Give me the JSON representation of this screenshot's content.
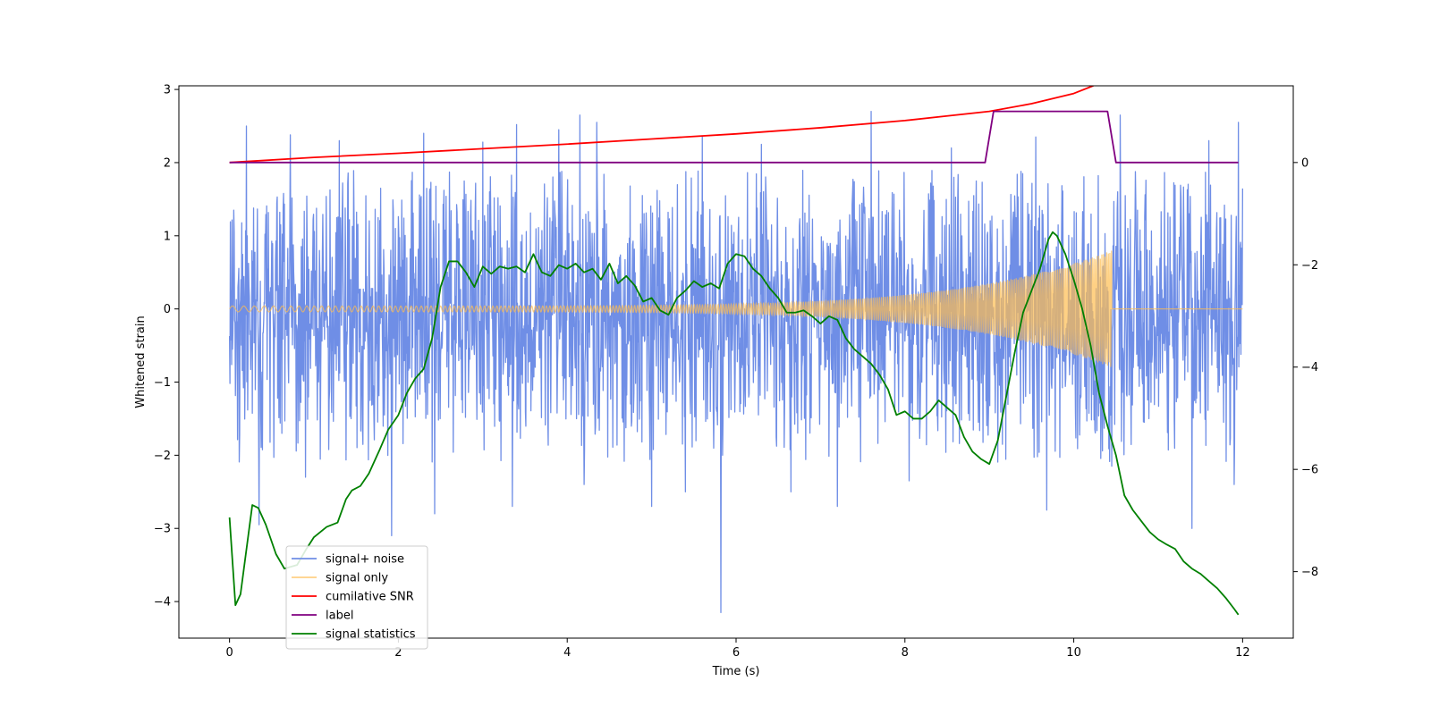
{
  "chart_data": {
    "type": "line",
    "title": "",
    "xlabel": "Time (s)",
    "ylabel": "Whitened strain",
    "y2label": "",
    "xlim": [
      -0.6,
      12.6
    ],
    "ylim": [
      -4.5,
      3.05
    ],
    "y2lim": [
      -9.3,
      1.5
    ],
    "xticks": [
      0,
      2,
      4,
      6,
      8,
      10,
      12
    ],
    "yticks": [
      -4,
      -3,
      -2,
      -1,
      0,
      1,
      2,
      3
    ],
    "y2ticks": [
      -8,
      -6,
      -4,
      -2,
      0
    ],
    "grid": false,
    "legend_position": "lower-left",
    "series": [
      {
        "name": "signal+ noise",
        "color": "#6f8ee6",
        "axis": "left",
        "kind": "noise",
        "x_range": [
          0,
          12
        ],
        "band": [
          -1.55,
          1.35
        ],
        "spikes_up": [
          [
            0.05,
            1.35
          ],
          [
            0.2,
            2.5
          ],
          [
            0.72,
            2.38
          ],
          [
            1.3,
            2.3
          ],
          [
            2.3,
            2.4
          ],
          [
            3.0,
            2.28
          ],
          [
            3.4,
            2.52
          ],
          [
            3.9,
            2.45
          ],
          [
            4.15,
            2.65
          ],
          [
            4.35,
            2.55
          ],
          [
            5.0,
            2.45
          ],
          [
            5.6,
            2.35
          ],
          [
            6.3,
            2.25
          ],
          [
            7.6,
            2.7
          ],
          [
            8.55,
            2.2
          ],
          [
            9.55,
            2.35
          ],
          [
            10.55,
            2.65
          ],
          [
            11.6,
            2.3
          ],
          [
            11.95,
            2.55
          ]
        ],
        "spikes_down": [
          [
            0.35,
            -2.95
          ],
          [
            0.9,
            -2.3
          ],
          [
            1.92,
            -3.1
          ],
          [
            2.43,
            -2.8
          ],
          [
            3.35,
            -2.7
          ],
          [
            4.2,
            -2.4
          ],
          [
            5.0,
            -2.7
          ],
          [
            5.4,
            -2.5
          ],
          [
            5.82,
            -4.15
          ],
          [
            6.65,
            -2.5
          ],
          [
            7.2,
            -2.7
          ],
          [
            8.05,
            -2.35
          ],
          [
            9.68,
            -2.75
          ],
          [
            10.45,
            -2.15
          ],
          [
            11.4,
            -3.0
          ],
          [
            11.9,
            -2.4
          ]
        ]
      },
      {
        "name": "signal only",
        "color": "#ffbe50",
        "axis": "left",
        "kind": "chirp",
        "x_range": [
          0,
          10.45
        ],
        "envelope_start": 0.04,
        "envelope_end": 0.8,
        "post_value": 0.0
      },
      {
        "name": "cumilative SNR",
        "color": "#ff0000",
        "axis": "right",
        "kind": "line",
        "x": [
          0,
          1,
          2,
          3,
          4,
          5,
          6,
          7,
          8,
          8.5,
          9,
          9.5,
          10,
          10.2,
          10.4,
          10.45,
          12
        ],
        "y": [
          0.0,
          0.1,
          0.18,
          0.27,
          0.36,
          0.46,
          0.56,
          0.68,
          0.82,
          0.91,
          1.0,
          1.15,
          1.35,
          1.48,
          1.62,
          1.78,
          1.78
        ]
      },
      {
        "name": "label",
        "color": "#800080",
        "axis": "right",
        "kind": "line",
        "x": [
          0,
          8.95,
          9.05,
          10.4,
          10.5,
          11.95
        ],
        "y": [
          0,
          0,
          1,
          1,
          0,
          0
        ]
      },
      {
        "name": "signal statistics",
        "color": "#008000",
        "axis": "left",
        "kind": "line",
        "x": [
          0,
          0.07,
          0.13,
          0.27,
          0.34,
          0.43,
          0.55,
          0.65,
          0.8,
          0.9,
          1.0,
          1.15,
          1.28,
          1.38,
          1.45,
          1.55,
          1.65,
          1.78,
          1.88,
          2.0,
          2.1,
          2.2,
          2.3,
          2.4,
          2.5,
          2.6,
          2.7,
          2.8,
          2.9,
          3.0,
          3.1,
          3.2,
          3.3,
          3.4,
          3.5,
          3.6,
          3.65,
          3.7,
          3.8,
          3.9,
          4.0,
          4.1,
          4.2,
          4.3,
          4.4,
          4.5,
          4.6,
          4.7,
          4.8,
          4.9,
          5.0,
          5.1,
          5.2,
          5.3,
          5.4,
          5.5,
          5.6,
          5.7,
          5.8,
          5.9,
          6.0,
          6.1,
          6.2,
          6.3,
          6.4,
          6.5,
          6.6,
          6.7,
          6.8,
          6.9,
          7.0,
          7.1,
          7.2,
          7.3,
          7.4,
          7.5,
          7.6,
          7.7,
          7.8,
          7.9,
          8.0,
          8.1,
          8.2,
          8.3,
          8.4,
          8.5,
          8.6,
          8.7,
          8.8,
          8.9,
          9.0,
          9.1,
          9.2,
          9.3,
          9.4,
          9.5,
          9.6,
          9.7,
          9.75,
          9.8,
          9.9,
          10.0,
          10.1,
          10.2,
          10.3,
          10.4,
          10.5,
          10.6,
          10.7,
          10.8,
          10.9,
          11.0,
          11.1,
          11.2,
          11.3,
          11.4,
          11.5,
          11.6,
          11.7,
          11.8,
          11.9,
          11.95
        ],
        "y": [
          -2.85,
          -4.05,
          -3.9,
          -2.68,
          -2.72,
          -2.95,
          -3.35,
          -3.55,
          -3.5,
          -3.3,
          -3.12,
          -2.98,
          -2.92,
          -2.6,
          -2.48,
          -2.42,
          -2.25,
          -1.92,
          -1.65,
          -1.45,
          -1.15,
          -0.95,
          -0.82,
          -0.4,
          0.3,
          0.65,
          0.65,
          0.5,
          0.3,
          0.58,
          0.48,
          0.58,
          0.55,
          0.58,
          0.5,
          0.75,
          0.62,
          0.5,
          0.45,
          0.6,
          0.55,
          0.62,
          0.5,
          0.55,
          0.4,
          0.62,
          0.35,
          0.45,
          0.32,
          0.1,
          0.15,
          -0.02,
          -0.08,
          0.15,
          0.25,
          0.38,
          0.3,
          0.35,
          0.28,
          0.62,
          0.75,
          0.72,
          0.55,
          0.45,
          0.28,
          0.15,
          -0.05,
          -0.05,
          -0.02,
          -0.1,
          -0.2,
          -0.1,
          -0.15,
          -0.4,
          -0.55,
          -0.65,
          -0.75,
          -0.9,
          -1.1,
          -1.45,
          -1.4,
          -1.5,
          -1.5,
          -1.4,
          -1.25,
          -1.35,
          -1.45,
          -1.75,
          -1.95,
          -2.05,
          -2.12,
          -1.8,
          -1.2,
          -0.6,
          -0.05,
          0.25,
          0.55,
          0.95,
          1.05,
          1.0,
          0.75,
          0.4,
          0.0,
          -0.5,
          -1.15,
          -1.6,
          -2.0,
          -2.55,
          -2.75,
          -2.9,
          -3.05,
          -3.15,
          -3.22,
          -3.28,
          -3.45,
          -3.55,
          -3.62,
          -3.72,
          -3.82,
          -3.95,
          -4.1,
          -4.18
        ]
      }
    ]
  }
}
